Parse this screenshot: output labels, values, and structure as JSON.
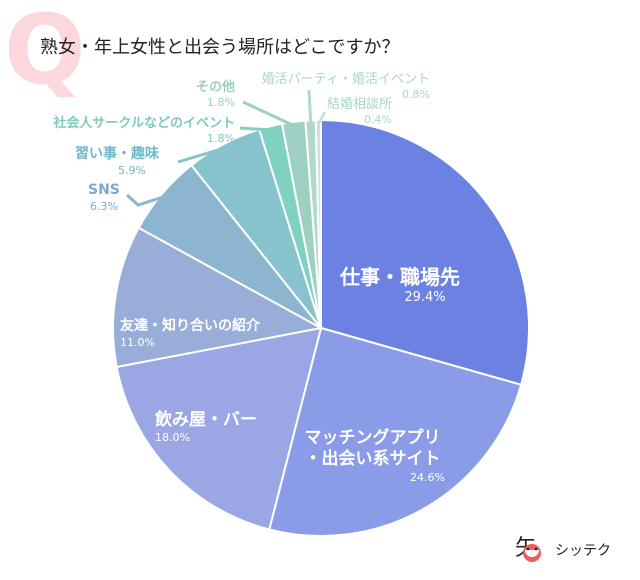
{
  "title": "熟女・年上女性と出会う場所はどこですか？",
  "q_mark": "Q",
  "logo": {
    "mark": "矢",
    "text": "シッテク"
  },
  "chart_data": {
    "type": "pie",
    "start": "top",
    "direction": "clockwise",
    "slices": [
      {
        "label": "仕事・職場先",
        "value": 29.4,
        "pct": "29.4%",
        "color": "#6b82e2"
      },
      {
        "label": "マッチングアプリ・出会い系サイト",
        "value": 24.6,
        "pct": "24.6%",
        "color": "#8a9be8"
      },
      {
        "label": "飲み屋・バー",
        "value": 18.0,
        "pct": "18.0%",
        "color": "#9ba6e4"
      },
      {
        "label": "友達・知り合いの紹介",
        "value": 11.0,
        "pct": "11.0%",
        "color": "#98aed8"
      },
      {
        "label": "SNS",
        "value": 6.3,
        "pct": "6.3%",
        "color": "#8cb6d0"
      },
      {
        "label": "習い事・趣味",
        "value": 5.9,
        "pct": "5.9%",
        "color": "#86c3cc"
      },
      {
        "label": "社会人サークルなどのイベント",
        "value": 1.8,
        "pct": "1.8%",
        "color": "#7fd1c2"
      },
      {
        "label": "その他",
        "value": 1.8,
        "pct": "1.8%",
        "color": "#9dd0c2"
      },
      {
        "label": "婚活パーティ・婚活イベント",
        "value": 0.8,
        "pct": "0.8%",
        "color": "#b2d8cd"
      },
      {
        "label": "結婚相談所",
        "value": 0.4,
        "pct": "0.4%",
        "color": "#c8e2d9"
      }
    ]
  }
}
